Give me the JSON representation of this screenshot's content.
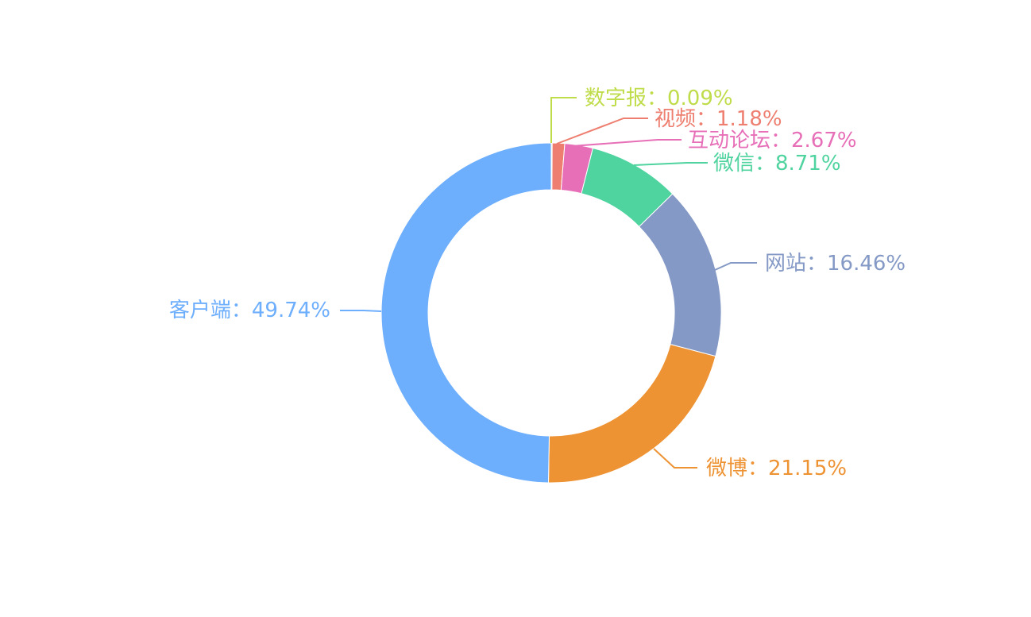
{
  "chart_data": {
    "type": "pie",
    "donut": true,
    "title": "",
    "slices": [
      {
        "label": "数字报",
        "percent": 0.09,
        "display": "数字报：0.09%",
        "color": "#bfdc4a"
      },
      {
        "label": "视频",
        "percent": 1.18,
        "display": "视频：1.18%",
        "color": "#ee7f70"
      },
      {
        "label": "互动论坛",
        "percent": 2.67,
        "display": "互动论坛：2.67%",
        "color": "#e76fb8"
      },
      {
        "label": "微信",
        "percent": 8.71,
        "display": "微信：8.71%",
        "color": "#4fd39f"
      },
      {
        "label": "网站",
        "percent": 16.46,
        "display": "网站：16.46%",
        "color": "#8499c5"
      },
      {
        "label": "微博",
        "percent": 21.15,
        "display": "微博：21.15%",
        "color": "#ee9334"
      },
      {
        "label": "客户端",
        "percent": 49.74,
        "display": "客户端：49.74%",
        "color": "#6daefd"
      }
    ]
  }
}
